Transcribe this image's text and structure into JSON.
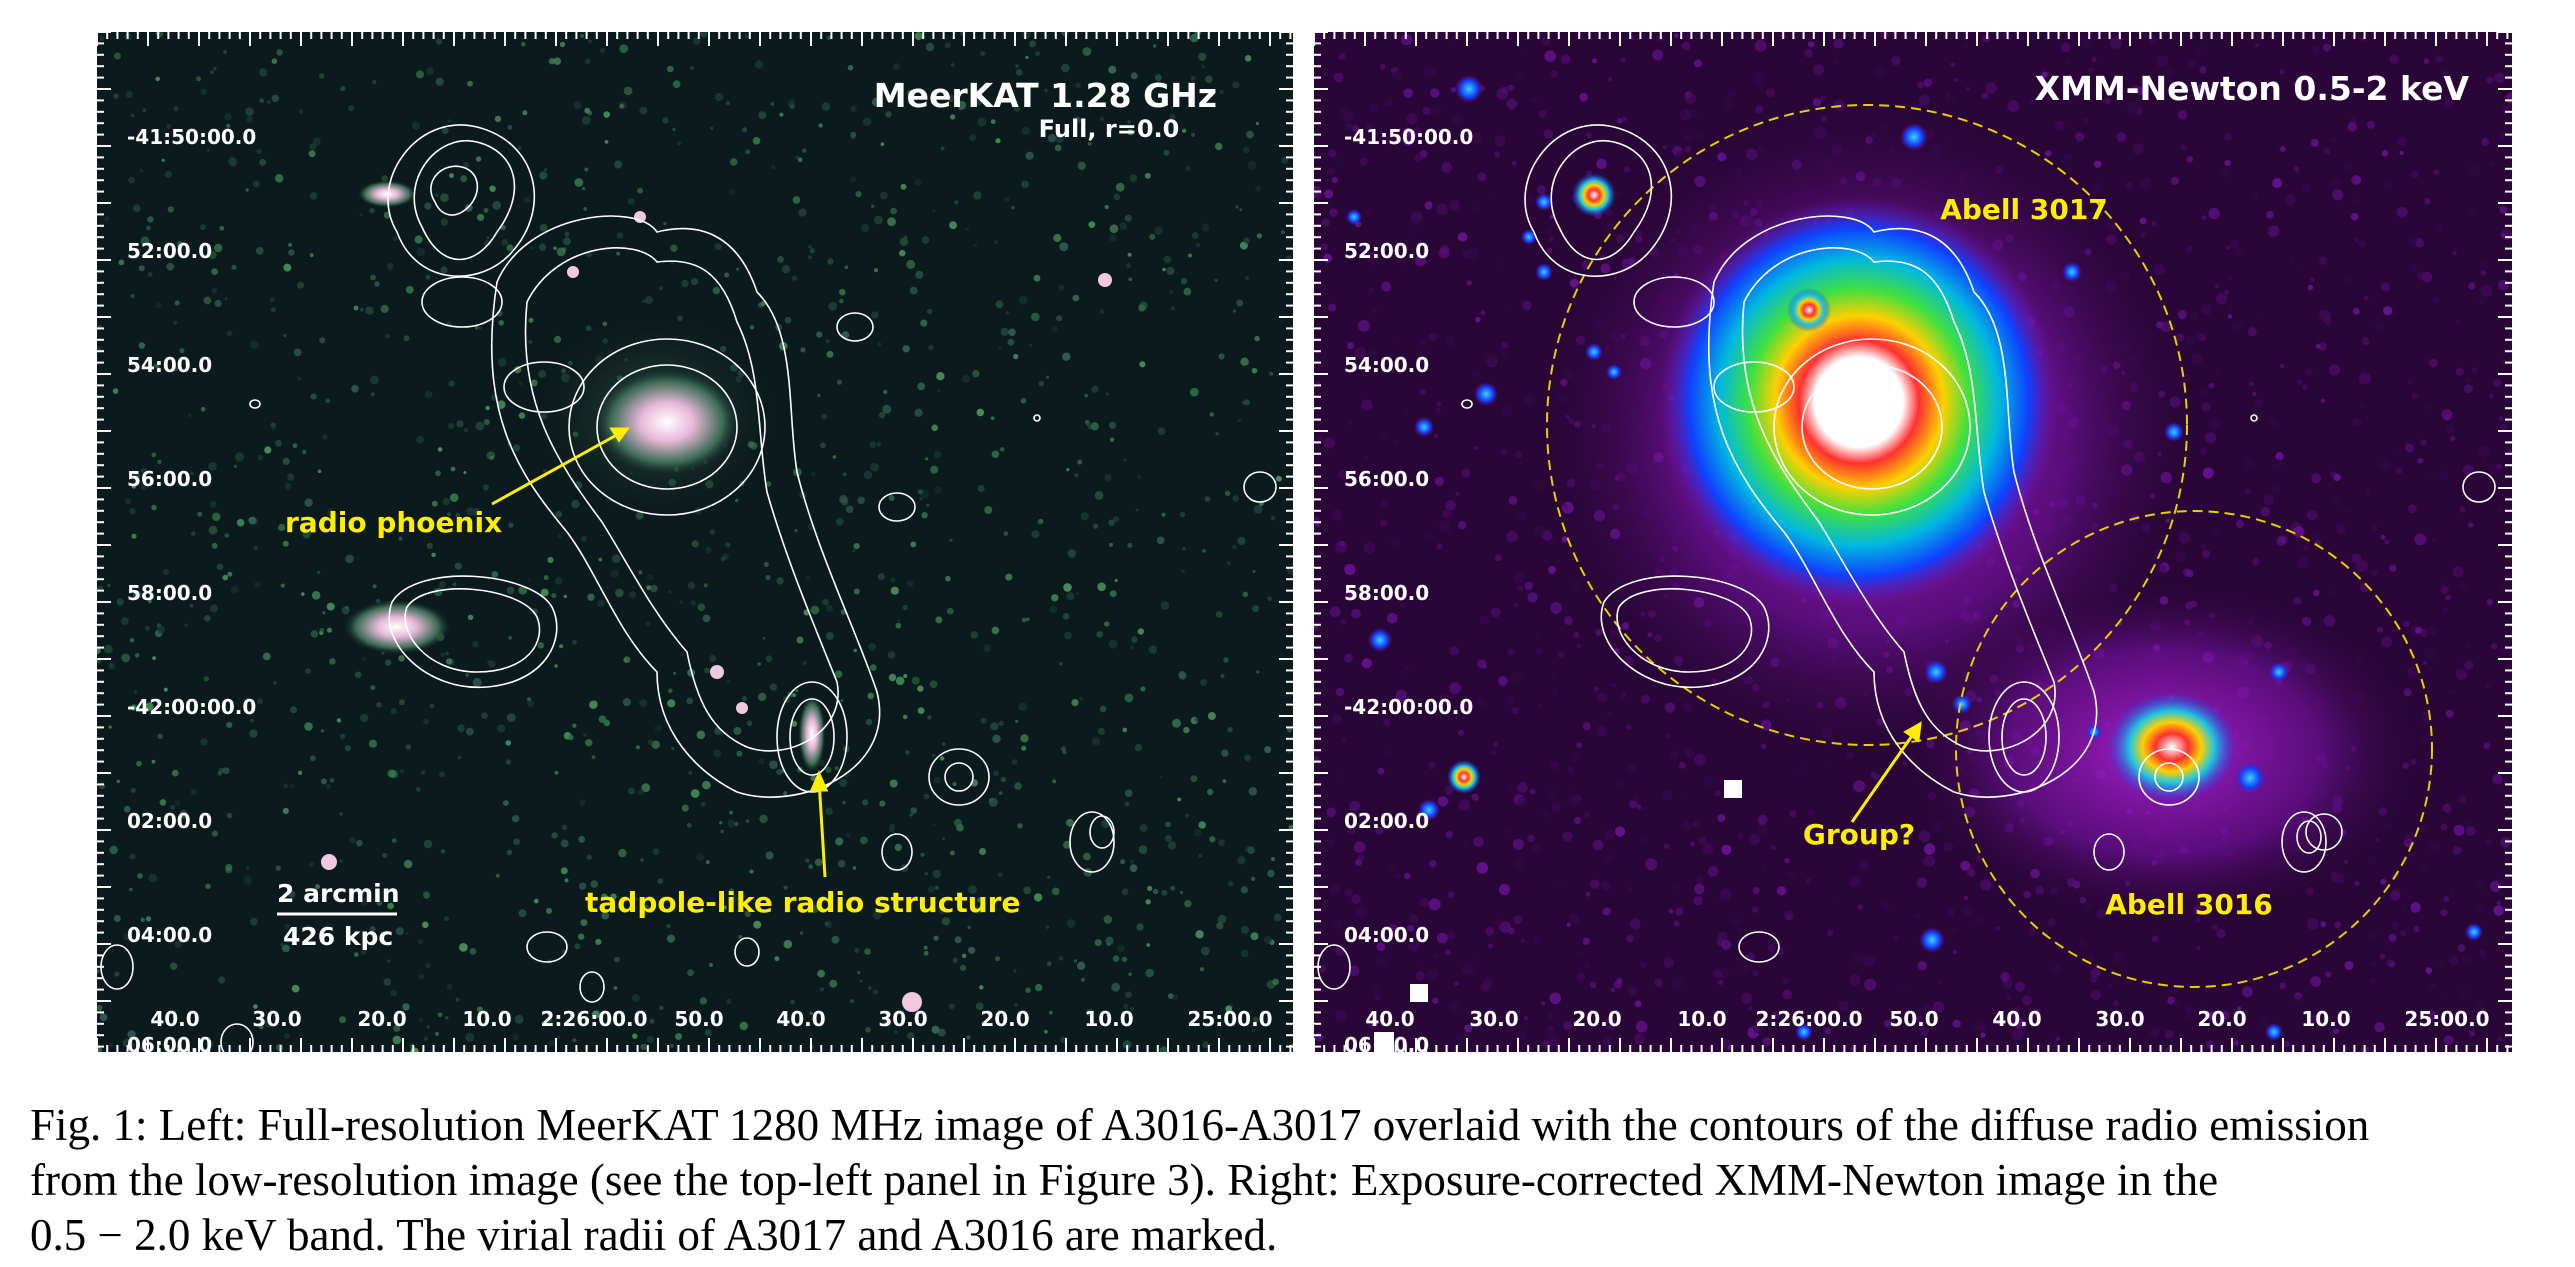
{
  "left_panel": {
    "title": "MeerKAT 1.28 GHz",
    "subtitle": "Full, r=0.0",
    "dec_ticks": [
      "-41:50:00.0",
      "52:00.0",
      "54:00.0",
      "56:00.0",
      "58:00.0",
      "-42:00:00.0",
      "02:00.0",
      "04:00.0",
      "06:00.0"
    ],
    "ra_ticks": [
      "40.0",
      "30.0",
      "20.0",
      "10.0",
      "2:26:00.0",
      "50.0",
      "40.0",
      "30.0",
      "20.0",
      "10.0",
      "25:00.0"
    ],
    "annotations": {
      "phoenix": "radio phoenix",
      "tadpole": "tadpole-like radio structure",
      "scale_arcmin": "2 arcmin",
      "scale_kpc": "426 kpc"
    },
    "colors": {
      "background": "#0b1a1c",
      "contours": "#ffffff",
      "annotation": "#ffee00"
    }
  },
  "right_panel": {
    "title": "XMM-Newton 0.5-2 keV",
    "dec_ticks": [
      "-41:50:00.0",
      "52:00.0",
      "54:00.0",
      "56:00.0",
      "58:00.0",
      "-42:00:00.0",
      "02:00.0",
      "04:00.0",
      "06:00.0"
    ],
    "ra_ticks": [
      "40.0",
      "30.0",
      "20.0",
      "10.0",
      "2:26:00.0",
      "50.0",
      "40.0",
      "30.0",
      "20.0",
      "10.0",
      "25:00.0"
    ],
    "annotations": {
      "a3017": "Abell 3017",
      "a3016": "Abell 3016",
      "group": "Group?"
    },
    "colors": {
      "background": "#2a0638",
      "contours": "#ffffff",
      "virial_circles": "#e8d000",
      "annotation": "#ffee00"
    }
  },
  "caption": {
    "lines": [
      "Fig. 1: Left: Full-resolution MeerKAT 1280 MHz image of A3016-A3017 overlaid with the contours of the diffuse radio emission",
      "from the low-resolution image (see the top-left panel in Figure 3). Right: Exposure-corrected XMM-Newton image in the",
      "0.5 − 2.0 keV band. The virial radii of A3017 and A3016 are marked."
    ]
  }
}
